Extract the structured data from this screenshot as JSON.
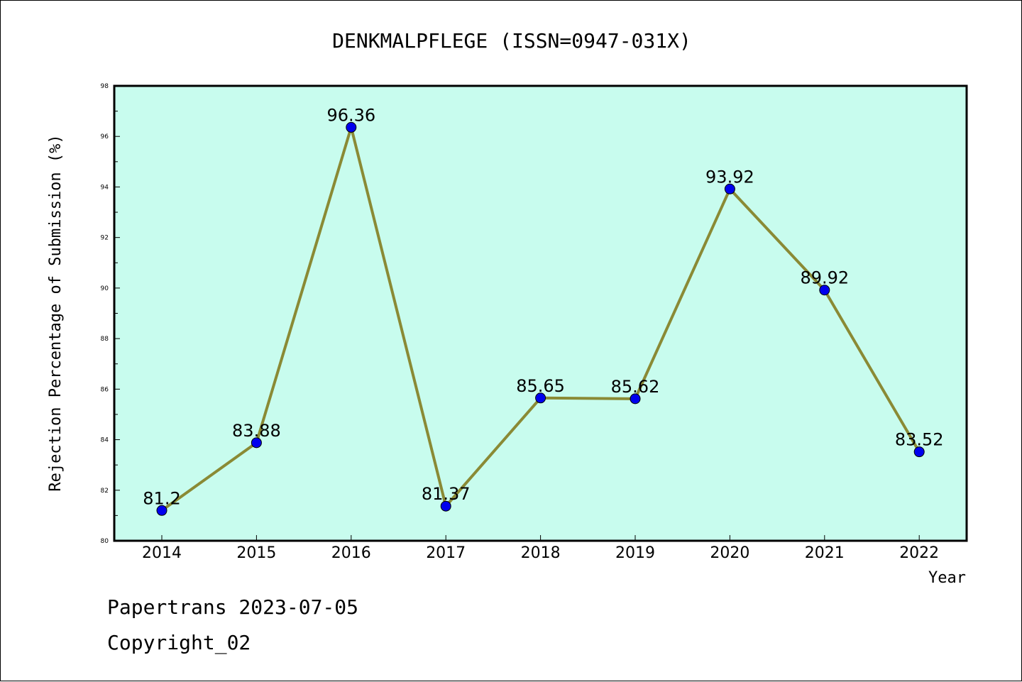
{
  "chart_data": {
    "type": "line",
    "title": "DENKMALPFLEGE (ISSN=0947-031X)",
    "xlabel": "Year",
    "ylabel": "Rejection Percentage of Submission (%)",
    "categories": [
      "2014",
      "2015",
      "2016",
      "2017",
      "2018",
      "2019",
      "2020",
      "2021",
      "2022"
    ],
    "values": [
      81.2,
      83.88,
      96.36,
      81.37,
      85.65,
      85.62,
      93.92,
      89.92,
      83.52
    ],
    "data_labels": [
      "81.2",
      "83.88",
      "96.36",
      "81.37",
      "85.65",
      "85.62",
      "93.92",
      "89.92",
      "83.52"
    ],
    "ylim": [
      80,
      98
    ],
    "yticks": [
      80,
      82,
      84,
      86,
      88,
      90,
      92,
      94,
      96,
      98
    ],
    "grid": false,
    "legend": "none",
    "colors": {
      "plot_background": "#c8fcee",
      "line": "#8a8a35",
      "marker": "#0000ee"
    }
  },
  "footer": {
    "line1": "Papertrans 2023-07-05",
    "line2": "Copyright_02"
  }
}
